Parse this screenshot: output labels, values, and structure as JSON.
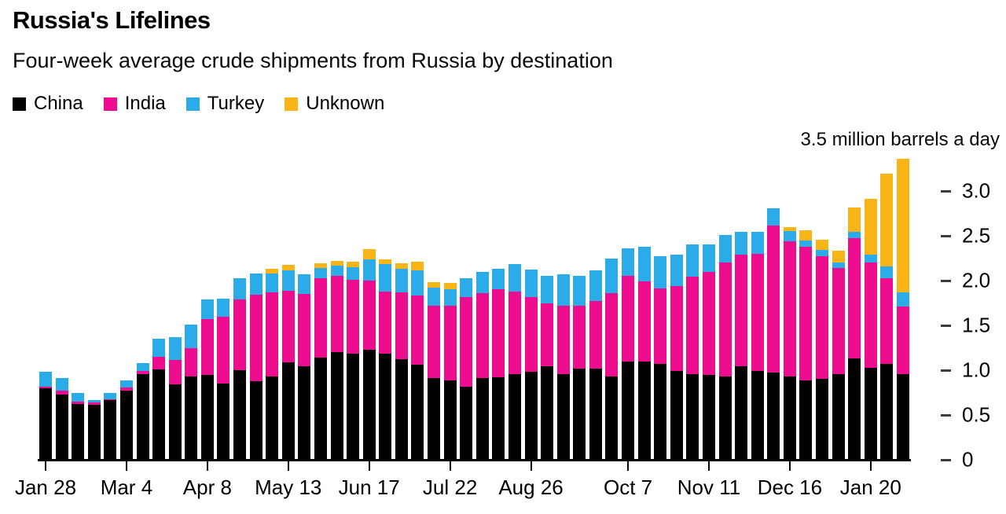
{
  "header": {
    "title": "Russia's Lifelines",
    "subtitle": "Four-week average crude shipments from Russia by destination"
  },
  "axis_annotation": "3.5 million barrels a day",
  "colors": {
    "china": "#000000",
    "india": "#EE0D8F",
    "turkey": "#2BACE8",
    "unknown": "#F9B517"
  },
  "chart_data": {
    "type": "bar",
    "stacked": true,
    "title": "Russia's Lifelines",
    "subtitle": "Four-week average crude shipments from Russia by destination",
    "ylabel": "million barrels a day",
    "xlabel": "",
    "ylim": [
      0,
      3.5
    ],
    "grid": false,
    "legend_position": "top",
    "y_ticks": [
      {
        "value": 0,
        "label": "0"
      },
      {
        "value": 0.5,
        "label": "0.5"
      },
      {
        "value": 1.0,
        "label": "1.0"
      },
      {
        "value": 1.5,
        "label": "1.5"
      },
      {
        "value": 2.0,
        "label": "2.0"
      },
      {
        "value": 2.5,
        "label": "2.5"
      },
      {
        "value": 3.0,
        "label": "3.0"
      }
    ],
    "x_tick_labels": [
      {
        "index": 0,
        "label": "Jan 28"
      },
      {
        "index": 5,
        "label": "Mar 4"
      },
      {
        "index": 10,
        "label": "Apr 8"
      },
      {
        "index": 15,
        "label": "May 13"
      },
      {
        "index": 20,
        "label": "Jun 17"
      },
      {
        "index": 25,
        "label": "Jul 22"
      },
      {
        "index": 30,
        "label": "Aug 26"
      },
      {
        "index": 36,
        "label": "Oct 7"
      },
      {
        "index": 41,
        "label": "Nov 11"
      },
      {
        "index": 46,
        "label": "Dec 16"
      },
      {
        "index": 51,
        "label": "Jan 20"
      }
    ],
    "categories": [
      "Jan 28",
      "Feb 4",
      "Feb 11",
      "Feb 18",
      "Feb 25",
      "Mar 4",
      "Mar 11",
      "Mar 18",
      "Mar 25",
      "Apr 1",
      "Apr 8",
      "Apr 15",
      "Apr 22",
      "Apr 29",
      "May 6",
      "May 13",
      "May 20",
      "May 27",
      "Jun 3",
      "Jun 10",
      "Jun 17",
      "Jun 24",
      "Jul 1",
      "Jul 8",
      "Jul 15",
      "Jul 22",
      "Jul 29",
      "Aug 5",
      "Aug 12",
      "Aug 19",
      "Aug 26",
      "Sep 2",
      "Sep 9",
      "Sep 16",
      "Sep 23",
      "Sep 30",
      "Oct 7",
      "Oct 14",
      "Oct 21",
      "Oct 28",
      "Nov 4",
      "Nov 11",
      "Nov 18",
      "Nov 25",
      "Dec 2",
      "Dec 9",
      "Dec 16",
      "Dec 23",
      "Dec 30",
      "Jan 6",
      "Jan 13",
      "Jan 20",
      "Jan 27",
      "Feb 3"
    ],
    "series": [
      {
        "name": "China",
        "color": "#000000",
        "values": [
          0.8,
          0.73,
          0.62,
          0.61,
          0.67,
          0.77,
          0.96,
          1.01,
          0.84,
          0.93,
          0.95,
          0.85,
          1.0,
          0.88,
          0.93,
          1.09,
          1.04,
          1.14,
          1.2,
          1.18,
          1.23,
          1.18,
          1.12,
          1.06,
          0.91,
          0.89,
          0.82,
          0.91,
          0.92,
          0.96,
          0.98,
          1.04,
          0.96,
          1.02,
          1.02,
          0.93,
          1.1,
          1.1,
          1.07,
          0.99,
          0.96,
          0.95,
          0.93,
          1.04,
          0.99,
          0.97,
          0.93,
          0.89,
          0.9,
          0.96,
          1.13,
          1.03,
          1.07,
          0.96
        ]
      },
      {
        "name": "India",
        "color": "#EE0D8F",
        "values": [
          0.02,
          0.04,
          0.03,
          0.03,
          0.01,
          0.04,
          0.03,
          0.14,
          0.27,
          0.32,
          0.62,
          0.75,
          0.79,
          0.96,
          0.94,
          0.8,
          0.81,
          0.89,
          0.85,
          0.83,
          0.77,
          0.7,
          0.75,
          0.77,
          0.81,
          0.83,
          1.0,
          0.95,
          0.98,
          0.92,
          0.84,
          0.71,
          0.76,
          0.7,
          0.75,
          0.93,
          0.95,
          0.89,
          0.84,
          0.95,
          1.08,
          1.15,
          1.27,
          1.25,
          1.31,
          1.64,
          1.51,
          1.49,
          1.37,
          1.18,
          1.34,
          1.17,
          0.96,
          0.75
        ]
      },
      {
        "name": "Turkey",
        "color": "#2BACE8",
        "values": [
          0.16,
          0.14,
          0.1,
          0.03,
          0.07,
          0.08,
          0.09,
          0.2,
          0.26,
          0.26,
          0.22,
          0.2,
          0.24,
          0.24,
          0.21,
          0.22,
          0.22,
          0.11,
          0.12,
          0.14,
          0.24,
          0.3,
          0.26,
          0.28,
          0.2,
          0.18,
          0.21,
          0.24,
          0.23,
          0.3,
          0.3,
          0.3,
          0.35,
          0.33,
          0.34,
          0.39,
          0.31,
          0.39,
          0.36,
          0.35,
          0.36,
          0.3,
          0.31,
          0.25,
          0.24,
          0.2,
          0.11,
          0.07,
          0.07,
          0.06,
          0.07,
          0.09,
          0.13,
          0.16
        ]
      },
      {
        "name": "Unknown",
        "color": "#F9B517",
        "values": [
          0,
          0,
          0,
          0,
          0,
          0,
          0,
          0,
          0,
          0,
          0,
          0,
          0,
          0,
          0.05,
          0.07,
          0,
          0.05,
          0.05,
          0.06,
          0.11,
          0.06,
          0.06,
          0.1,
          0.06,
          0.07,
          0,
          0,
          0,
          0,
          0,
          0,
          0,
          0,
          0,
          0,
          0,
          0,
          0,
          0,
          0,
          0,
          0,
          0,
          0,
          0,
          0.05,
          0.11,
          0.12,
          0.13,
          0.28,
          0.62,
          1.03,
          1.49
        ]
      }
    ]
  }
}
